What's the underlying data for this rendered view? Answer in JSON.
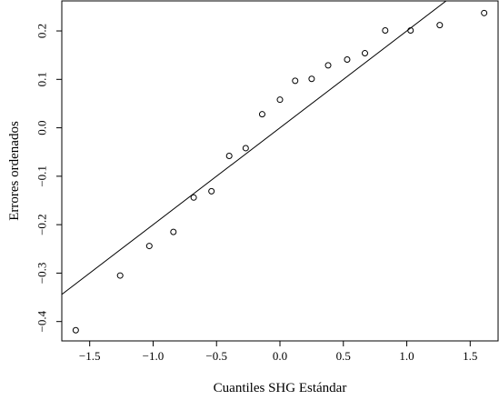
{
  "chart_data": {
    "type": "scatter",
    "title": "",
    "xlabel": "Cuantiles SHG Estándar",
    "ylabel": "Errores ordenados",
    "xlim": [
      -1.72,
      1.72
    ],
    "ylim": [
      -0.44,
      0.262
    ],
    "xticks": [
      -1.5,
      -1.0,
      -0.5,
      0.0,
      0.5,
      1.0,
      1.5
    ],
    "xtick_labels": [
      "−1.5",
      "−1.0",
      "−0.5",
      "0.0",
      "0.5",
      "1.0",
      "1.5"
    ],
    "yticks": [
      -0.4,
      -0.3,
      -0.2,
      -0.1,
      0.0,
      0.1,
      0.2
    ],
    "ytick_labels": [
      "−0.4",
      "−0.3",
      "−0.2",
      "−0.1",
      "0.0",
      "0.1",
      "0.2"
    ],
    "grid": false,
    "points": {
      "x": [
        -1.61,
        -1.26,
        -1.03,
        -0.84,
        -0.68,
        -0.54,
        -0.4,
        -0.27,
        -0.14,
        0.0,
        0.12,
        0.25,
        0.38,
        0.53,
        0.67,
        0.83,
        1.03,
        1.26,
        1.61
      ],
      "y": [
        -0.418,
        -0.305,
        -0.244,
        -0.215,
        -0.144,
        -0.131,
        -0.058,
        -0.042,
        0.028,
        0.058,
        0.097,
        0.101,
        0.129,
        0.141,
        0.154,
        0.201,
        0.201,
        0.212,
        0.237
      ]
    },
    "reference_line": {
      "intercept": 0.0,
      "slope": 0.2
    }
  }
}
